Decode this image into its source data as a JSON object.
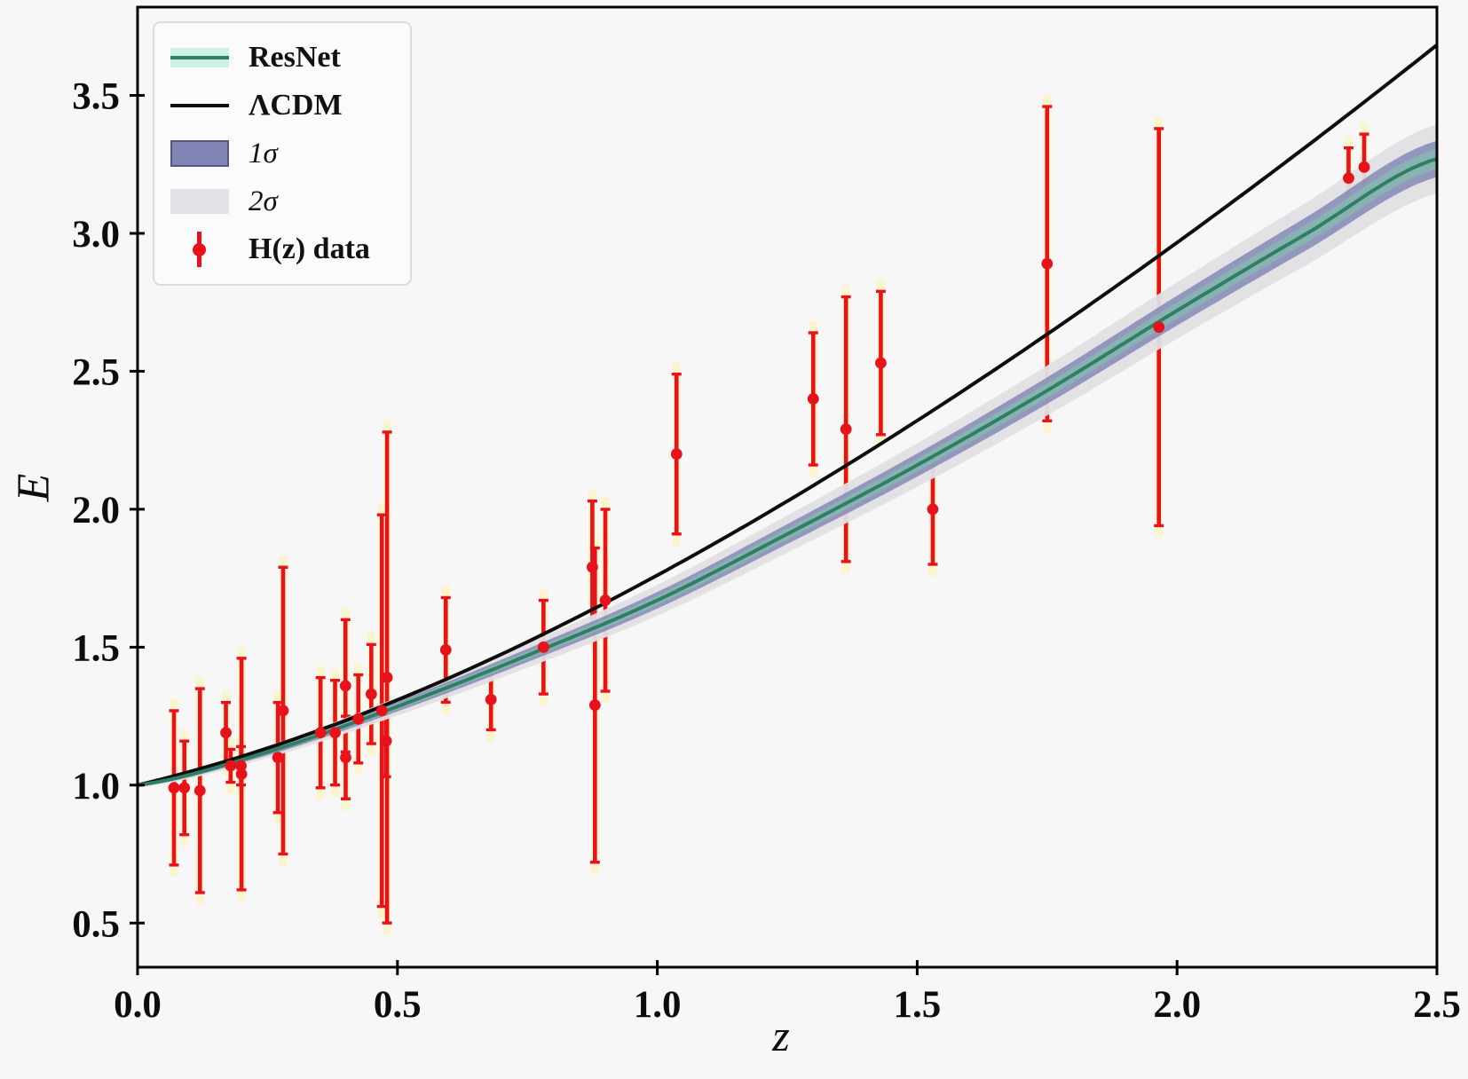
{
  "chart_data": {
    "type": "line+scatter",
    "title": "",
    "xlabel": "z",
    "ylabel": "E",
    "xlim": [
      0,
      2.5
    ],
    "ylim": [
      0.34,
      3.82
    ],
    "grid": false,
    "legend_position": "upper left",
    "x_ticks": {
      "values": [
        0.0,
        0.5,
        1.0,
        1.5,
        2.0,
        2.5
      ],
      "labels": [
        "0.0",
        "0.5",
        "1.0",
        "1.5",
        "2.0",
        "2.5"
      ]
    },
    "y_ticks": {
      "values": [
        0.5,
        1.0,
        1.5,
        2.0,
        2.5,
        3.0,
        3.5
      ],
      "labels": [
        "0.5",
        "1.0",
        "1.5",
        "2.0",
        "2.5",
        "3.0",
        "3.5"
      ]
    },
    "series": [
      {
        "name": "ResNet",
        "type": "line",
        "z": [
          0,
          0.25,
          0.5,
          0.75,
          1.0,
          1.25,
          1.5,
          1.75,
          2.0,
          2.25,
          2.5
        ],
        "E": [
          1.0,
          1.12,
          1.285,
          1.47,
          1.67,
          1.91,
          2.16,
          2.43,
          2.72,
          3.0,
          3.27
        ]
      },
      {
        "name": "ΛCDM",
        "type": "line",
        "model": "E(z)=sqrt(Om*(1+z)^3+1-Om)",
        "omega_m": 0.3
      }
    ],
    "bands": [
      {
        "name": "1σ",
        "half_width_base": 0.006,
        "half_width_slope": 0.024
      },
      {
        "name": "2σ",
        "half_width_base": 0.01,
        "half_width_slope": 0.046
      },
      {
        "name": "resnet-inner",
        "half_width_base": 0.004,
        "half_width_slope": 0.013
      }
    ],
    "points": {
      "name": "H(z) data",
      "columns": [
        "z",
        "E",
        "err"
      ],
      "data": [
        [
          0.07,
          0.99,
          0.28
        ],
        [
          0.09,
          0.99,
          0.17
        ],
        [
          0.12,
          0.98,
          0.37
        ],
        [
          0.17,
          1.19,
          0.11
        ],
        [
          0.179,
          1.07,
          0.06
        ],
        [
          0.199,
          1.07,
          0.07
        ],
        [
          0.2,
          1.04,
          0.42
        ],
        [
          0.27,
          1.1,
          0.2
        ],
        [
          0.28,
          1.27,
          0.52
        ],
        [
          0.352,
          1.19,
          0.2
        ],
        [
          0.38,
          1.19,
          0.19
        ],
        [
          0.4,
          1.36,
          0.24
        ],
        [
          0.4004,
          1.1,
          0.15
        ],
        [
          0.4247,
          1.24,
          0.16
        ],
        [
          0.4497,
          1.33,
          0.18
        ],
        [
          0.47,
          1.27,
          0.71
        ],
        [
          0.4783,
          1.16,
          0.13
        ],
        [
          0.48,
          1.39,
          0.89
        ],
        [
          0.593,
          1.49,
          0.19
        ],
        [
          0.68,
          1.31,
          0.11
        ],
        [
          0.781,
          1.5,
          0.17
        ],
        [
          0.875,
          1.79,
          0.24
        ],
        [
          0.88,
          1.29,
          0.57
        ],
        [
          0.9,
          1.67,
          0.33
        ],
        [
          1.037,
          2.2,
          0.29
        ],
        [
          1.3,
          2.4,
          0.24
        ],
        [
          1.363,
          2.29,
          0.48
        ],
        [
          1.43,
          2.53,
          0.26
        ],
        [
          1.53,
          2.0,
          0.2
        ],
        [
          1.75,
          2.89,
          0.57
        ],
        [
          1.965,
          2.66,
          0.72
        ],
        [
          2.33,
          3.2,
          0.11
        ],
        [
          2.36,
          3.24,
          0.12
        ]
      ]
    }
  },
  "legend": {
    "items": [
      {
        "key": "resnet",
        "label": "ResNet"
      },
      {
        "key": "lcdm",
        "label": "ΛCDM"
      },
      {
        "key": "sigma1",
        "label": "1σ"
      },
      {
        "key": "sigma2",
        "label": "2σ"
      },
      {
        "key": "hz",
        "label": "H(z) data"
      }
    ]
  },
  "colors": {
    "background": "#f7f7f8",
    "axis": "#000000",
    "lcdm_line": "#0d0d0d",
    "resnet_line": "#2e7f63",
    "inner_band": "#7fc9ab",
    "sigma1_band": "#7e81b2",
    "sigma2_band": "#e0e0e4",
    "data_red": "#e8121a",
    "halo": "#fdf3b3",
    "legend_border": "#dcdcdf",
    "legend_bg": "#fbfbfc"
  }
}
